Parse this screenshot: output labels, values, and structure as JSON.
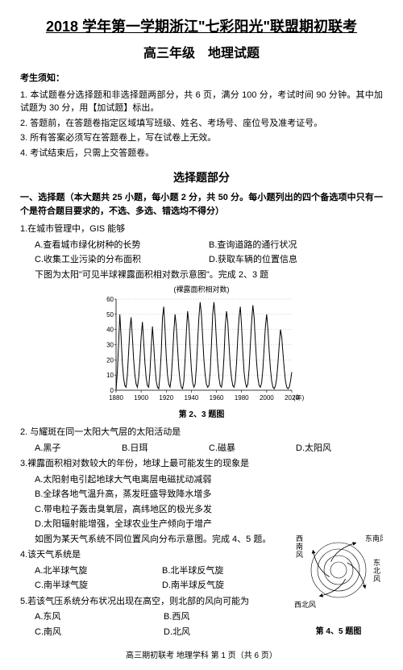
{
  "title_main": "2018 学年第一学期浙江\"七彩阳光\"联盟期初联考",
  "title_sub": "高三年级　地理试题",
  "notice_heading": "考生须知：",
  "notices": [
    "1. 本试题卷分选择题和非选择题两部分，共 6 页，满分 100 分，考试时间 90 分钟。其中加试题为 30 分，用【加试题】标出。",
    "2. 答题前，在答题卷指定区域填写班级、姓名、考场号、座位号及准考证号。",
    "3. 所有答案必须写在答题卷上，写在试卷上无效。",
    "4. 考试结束后，只需上交答题卷。"
  ],
  "section_heading": "选择题部分",
  "section_instructions": "一、选择题（本大题共 25 小题，每小题 2 分，共 50 分。每小题列出的四个备选项中只有一个是符合题目要求的，不选、多选、错选均不得分）",
  "q1": {
    "text": "1.在城市管理中，GIS 能够",
    "optA": "A.查看城市绿化树种的长势",
    "optB": "B.查询道路的通行状况",
    "optC": "C.收集工业污染的分布面积",
    "optD": "D.获取车辆的位置信息"
  },
  "chart_context": "下图为太阳\"可见半球裸露面积相对数示意图\"。完成 2、3 题",
  "chart": {
    "subtitle": "(裸露面积相对数)",
    "ylim": [
      0,
      60
    ],
    "yticks": [
      0,
      10,
      20,
      30,
      40,
      50,
      60
    ],
    "xlim": [
      1880,
      2020
    ],
    "xticks": [
      1880,
      1900,
      1920,
      1940,
      1960,
      1980,
      2000,
      2020
    ],
    "xaxis_label": "(年)",
    "data": [
      [
        1880,
        0
      ],
      [
        1881,
        12
      ],
      [
        1882,
        30
      ],
      [
        1883,
        50
      ],
      [
        1884,
        35
      ],
      [
        1885,
        18
      ],
      [
        1886,
        8
      ],
      [
        1887,
        3
      ],
      [
        1888,
        2
      ],
      [
        1889,
        10
      ],
      [
        1890,
        25
      ],
      [
        1891,
        40
      ],
      [
        1892,
        48
      ],
      [
        1893,
        35
      ],
      [
        1894,
        20
      ],
      [
        1895,
        10
      ],
      [
        1896,
        4
      ],
      [
        1897,
        2
      ],
      [
        1898,
        8
      ],
      [
        1899,
        20
      ],
      [
        1900,
        35
      ],
      [
        1901,
        45
      ],
      [
        1902,
        32
      ],
      [
        1903,
        18
      ],
      [
        1904,
        8
      ],
      [
        1905,
        3
      ],
      [
        1906,
        2
      ],
      [
        1907,
        12
      ],
      [
        1908,
        28
      ],
      [
        1909,
        42
      ],
      [
        1910,
        30
      ],
      [
        1911,
        16
      ],
      [
        1912,
        6
      ],
      [
        1913,
        2
      ],
      [
        1914,
        1
      ],
      [
        1915,
        10
      ],
      [
        1916,
        25
      ],
      [
        1917,
        48
      ],
      [
        1918,
        55
      ],
      [
        1919,
        40
      ],
      [
        1920,
        22
      ],
      [
        1921,
        10
      ],
      [
        1922,
        4
      ],
      [
        1923,
        2
      ],
      [
        1924,
        8
      ],
      [
        1925,
        22
      ],
      [
        1926,
        38
      ],
      [
        1927,
        50
      ],
      [
        1928,
        42
      ],
      [
        1929,
        28
      ],
      [
        1930,
        14
      ],
      [
        1931,
        6
      ],
      [
        1932,
        2
      ],
      [
        1933,
        1
      ],
      [
        1934,
        6
      ],
      [
        1935,
        20
      ],
      [
        1936,
        38
      ],
      [
        1937,
        52
      ],
      [
        1938,
        44
      ],
      [
        1939,
        28
      ],
      [
        1940,
        14
      ],
      [
        1941,
        5
      ],
      [
        1942,
        2
      ],
      [
        1943,
        4
      ],
      [
        1944,
        15
      ],
      [
        1945,
        32
      ],
      [
        1946,
        48
      ],
      [
        1947,
        58
      ],
      [
        1948,
        50
      ],
      [
        1949,
        35
      ],
      [
        1950,
        20
      ],
      [
        1951,
        10
      ],
      [
        1952,
        4
      ],
      [
        1953,
        2
      ],
      [
        1954,
        3
      ],
      [
        1955,
        12
      ],
      [
        1956,
        30
      ],
      [
        1957,
        50
      ],
      [
        1958,
        58
      ],
      [
        1959,
        48
      ],
      [
        1960,
        32
      ],
      [
        1961,
        18
      ],
      [
        1962,
        8
      ],
      [
        1963,
        3
      ],
      [
        1964,
        2
      ],
      [
        1965,
        8
      ],
      [
        1966,
        22
      ],
      [
        1967,
        42
      ],
      [
        1968,
        52
      ],
      [
        1969,
        45
      ],
      [
        1970,
        30
      ],
      [
        1971,
        16
      ],
      [
        1972,
        8
      ],
      [
        1973,
        3
      ],
      [
        1974,
        2
      ],
      [
        1975,
        6
      ],
      [
        1976,
        18
      ],
      [
        1977,
        35
      ],
      [
        1978,
        48
      ],
      [
        1979,
        55
      ],
      [
        1980,
        42
      ],
      [
        1981,
        25
      ],
      [
        1982,
        12
      ],
      [
        1983,
        5
      ],
      [
        1984,
        2
      ],
      [
        1985,
        4
      ],
      [
        1986,
        14
      ],
      [
        1987,
        30
      ],
      [
        1988,
        45
      ],
      [
        1989,
        56
      ],
      [
        1990,
        48
      ],
      [
        1991,
        32
      ],
      [
        1992,
        18
      ],
      [
        1993,
        8
      ],
      [
        1994,
        3
      ],
      [
        1995,
        2
      ],
      [
        1996,
        5
      ],
      [
        1997,
        14
      ],
      [
        1998,
        28
      ],
      [
        1999,
        42
      ],
      [
        2000,
        50
      ],
      [
        2001,
        40
      ],
      [
        2002,
        26
      ],
      [
        2003,
        14
      ],
      [
        2004,
        6
      ],
      [
        2005,
        2
      ],
      [
        2006,
        1
      ],
      [
        2007,
        3
      ],
      [
        2008,
        8
      ],
      [
        2009,
        18
      ],
      [
        2010,
        30
      ],
      [
        2011,
        40
      ],
      [
        2012,
        35
      ],
      [
        2013,
        24
      ],
      [
        2014,
        14
      ],
      [
        2015,
        6
      ],
      [
        2016,
        2
      ],
      [
        2017,
        1
      ],
      [
        2018,
        2
      ],
      [
        2019,
        6
      ],
      [
        2020,
        12
      ]
    ],
    "line_color": "#000000",
    "background_color": "#ffffff",
    "grid_color": "#888888",
    "line_width": 1,
    "fig_label": "第 2、3 题图"
  },
  "q2": {
    "text": "2. 与耀斑在同一太阳大气层的太阳活动是",
    "optA": "A.黑子",
    "optB": "B.日珥",
    "optC": "C.磁暴",
    "optD": "D.太阳风"
  },
  "q3": {
    "text": "3.裸露面积相对数较大的年份，地球上最可能发生的现象是",
    "optA": "A.太阳射电引起地球大气电离层电磁扰动减弱",
    "optB": "B.全球各地气温升高，蒸发旺盛导致降水增多",
    "optC": "C.带电粒子轰击臭氧层，高纬地区的极光多发",
    "optD": "D.太阳辐射能增强，全球农业生产倾向于增产"
  },
  "context45": "如图为某天气系统不同位置风向分布示意图。完成 4、5 题。",
  "q4": {
    "text": "4.该天气系统是",
    "optA": "A.北半球气旋",
    "optB": "B.北半球反气旋",
    "optC": "C.南半球气旋",
    "optD": "D.南半球反气旋"
  },
  "q5": {
    "text": "5.若该气压系统分布状况出现在高空，则北部的风向可能为",
    "optA": "A.东风",
    "optB": "B.西风",
    "optC": "C.南风",
    "optD": "D.北风"
  },
  "wind": {
    "labels": {
      "ne": "东南风",
      "se": "东北风",
      "sw": "西北风",
      "nw": "西南风"
    },
    "fig_label": "第 4、5 题图",
    "circle_color": "#000000",
    "line_width": 1
  },
  "footer": "高三期初联考 地理学科 第 1 页（共 6 页）"
}
